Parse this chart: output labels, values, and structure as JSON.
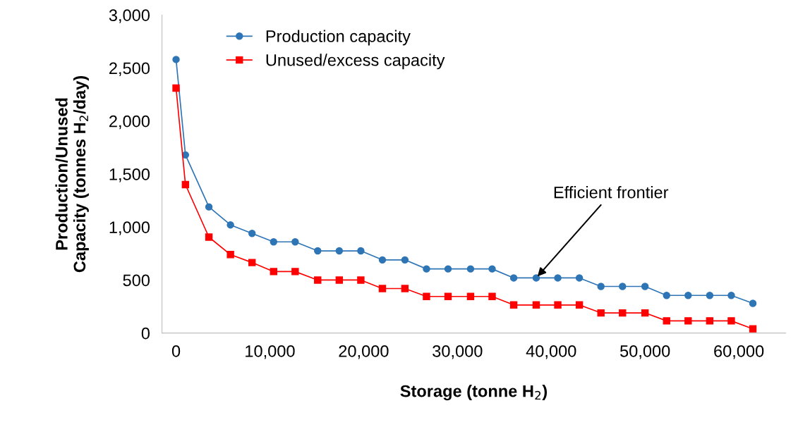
{
  "chart_data": {
    "type": "line",
    "xlabel": "Storage (tonne H$_{2}$)",
    "ylabel": "Production/Unused\nCapacity (tonnes H$_{2}$/day)",
    "x": [
      0,
      1000,
      3500,
      5800,
      8100,
      10400,
      12700,
      15100,
      17400,
      19700,
      22000,
      24400,
      26700,
      29000,
      31400,
      33700,
      36000,
      38400,
      40700,
      43000,
      45300,
      47600,
      50000,
      52300,
      54600,
      56900,
      59200,
      61500
    ],
    "series": [
      {
        "name": "Production capacity",
        "color": "#2e75b6",
        "marker": "circle",
        "values": [
          2580,
          1680,
          1190,
          1020,
          940,
          860,
          860,
          775,
          775,
          775,
          690,
          690,
          605,
          605,
          605,
          605,
          520,
          520,
          520,
          520,
          440,
          440,
          440,
          355,
          355,
          355,
          355,
          280
        ]
      },
      {
        "name": "Unused/excess capacity",
        "color": "#ff0000",
        "marker": "square",
        "values": [
          2310,
          1400,
          905,
          740,
          665,
          580,
          580,
          500,
          500,
          500,
          420,
          420,
          345,
          345,
          345,
          345,
          265,
          265,
          265,
          265,
          190,
          190,
          190,
          115,
          115,
          115,
          115,
          40
        ]
      }
    ],
    "xlim": [
      -1500,
      65000
    ],
    "ylim": [
      0,
      3000
    ],
    "xticks": [
      0,
      {
        "value": 10000,
        "label": "10,000"
      },
      {
        "value": 20000,
        "label": "20,000"
      },
      {
        "value": 30000,
        "label": "30,000"
      },
      {
        "value": 40000,
        "label": "40,000"
      },
      {
        "value": 50000,
        "label": "50,000"
      },
      {
        "value": 60000,
        "label": "60,000"
      }
    ],
    "yticks": [
      0,
      500,
      {
        "value": 1000,
        "label": "1,000"
      },
      {
        "value": 1500,
        "label": "1,500"
      },
      {
        "value": 2000,
        "label": "2,000"
      },
      {
        "value": 2500,
        "label": "2,500"
      },
      {
        "value": 3000,
        "label": "3,000"
      }
    ],
    "annotations": [
      {
        "text": "Efficient frontier",
        "x": 38400,
        "y": 520
      }
    ],
    "legend": "top left",
    "grid": false
  }
}
